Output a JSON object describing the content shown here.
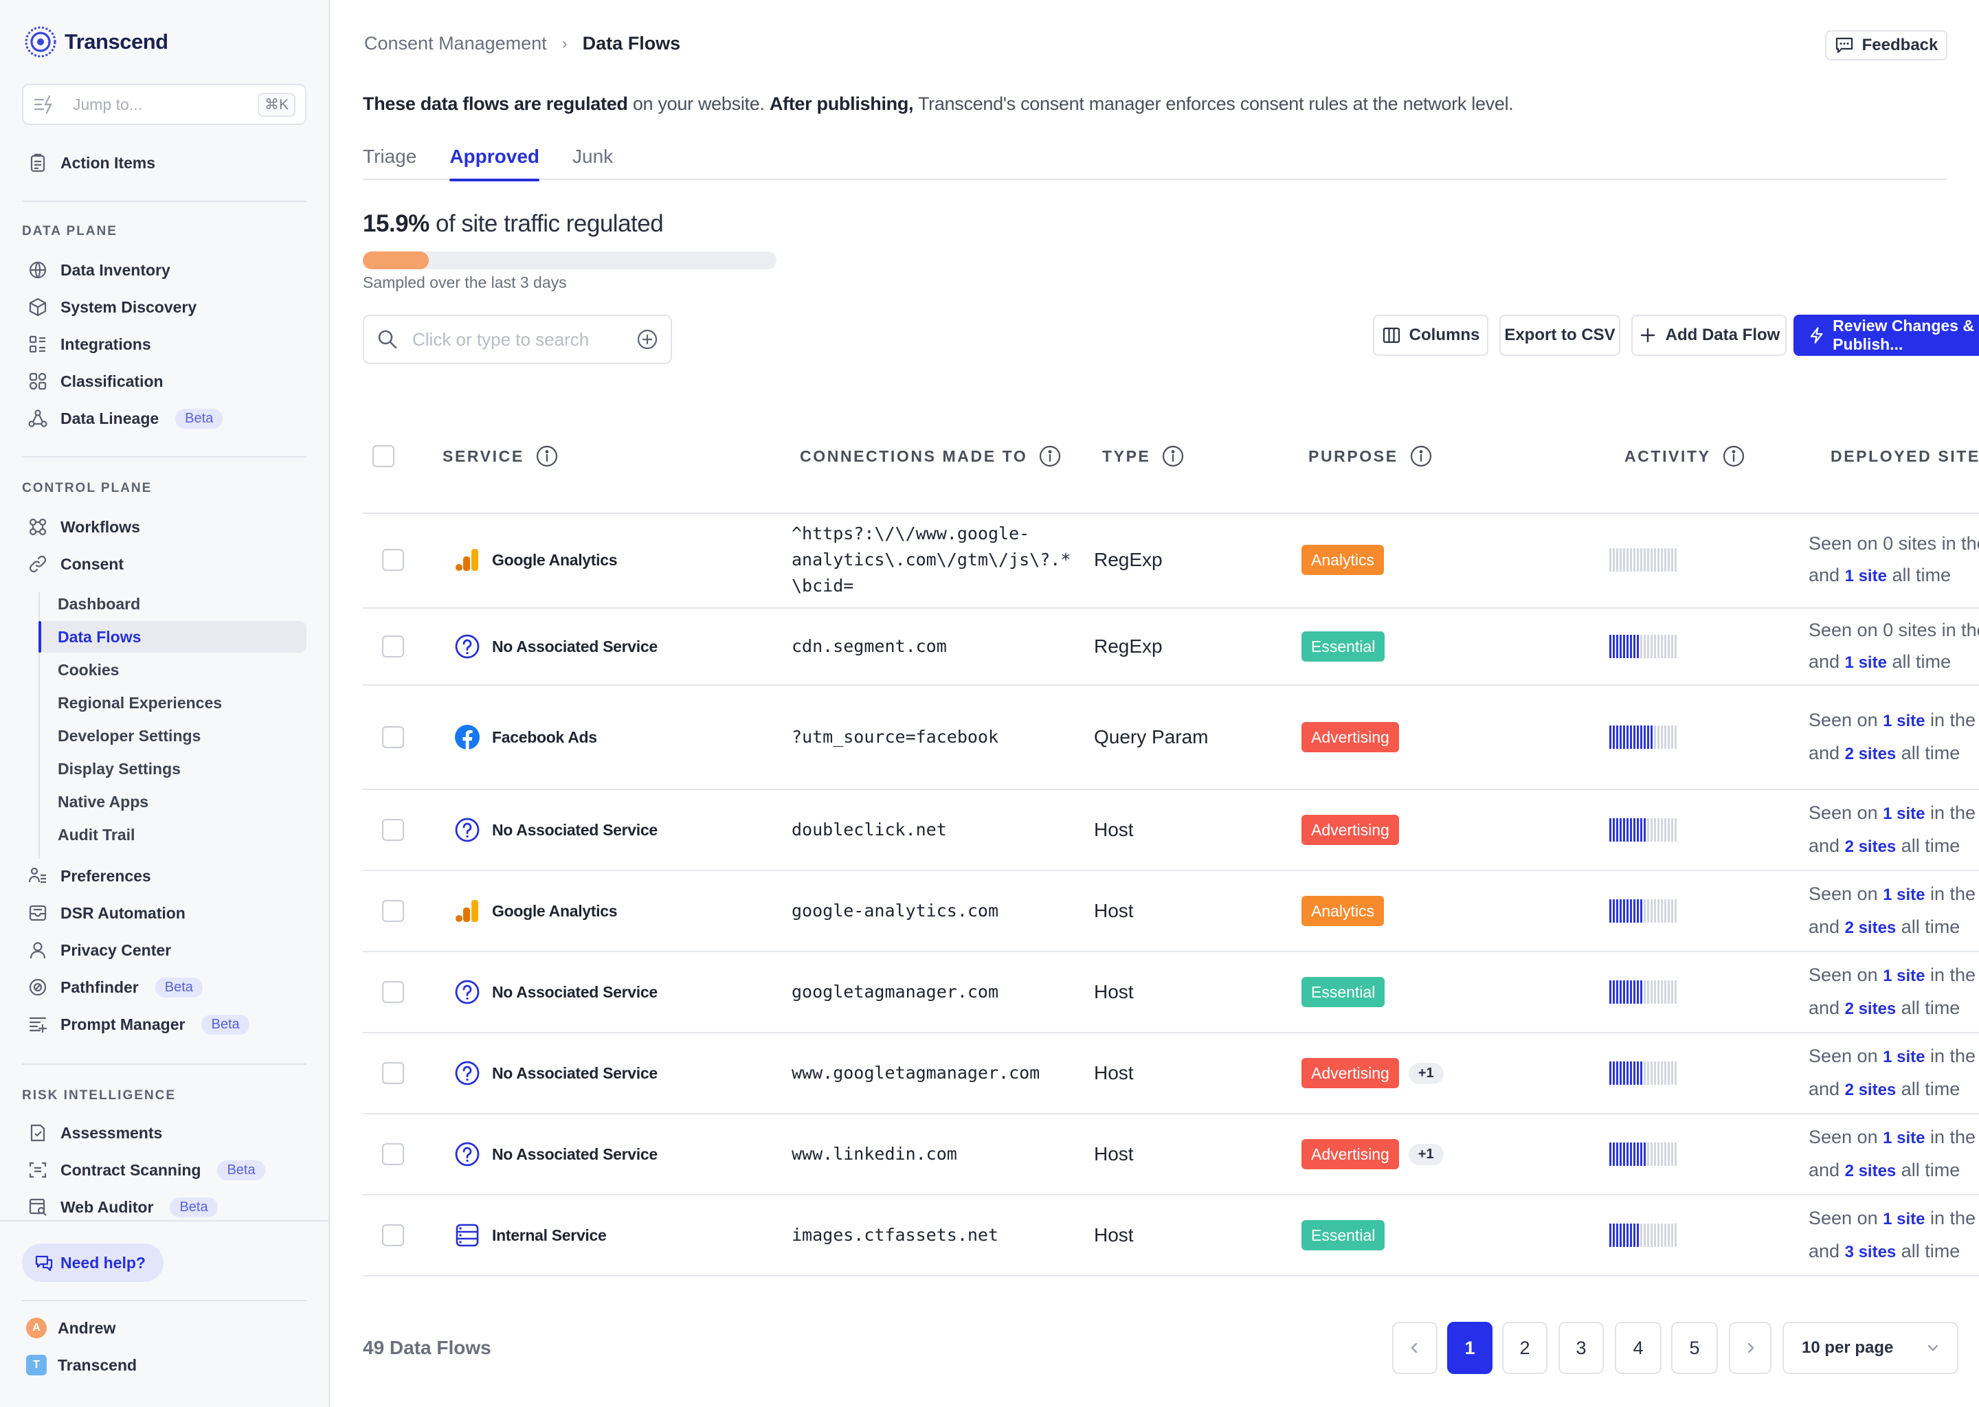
{
  "app": {
    "name": "Transcend"
  },
  "jump": {
    "placeholder": "Jump to...",
    "shortcut": "⌘K"
  },
  "nav": {
    "action_items": "Action Items",
    "data_plane_label": "DATA PLANE",
    "data_plane": [
      {
        "label": "Data Inventory",
        "icon": "globe-icon"
      },
      {
        "label": "System Discovery",
        "icon": "cube-icon"
      },
      {
        "label": "Integrations",
        "icon": "integrations-icon"
      },
      {
        "label": "Classification",
        "icon": "classification-icon"
      },
      {
        "label": "Data Lineage",
        "icon": "lineage-icon",
        "badge": "Beta"
      }
    ],
    "control_plane_label": "CONTROL PLANE",
    "control_plane": [
      {
        "label": "Workflows",
        "icon": "workflows-icon"
      },
      {
        "label": "Consent",
        "icon": "link-icon"
      }
    ],
    "consent_sub": [
      "Dashboard",
      "Data Flows",
      "Cookies",
      "Regional Experiences",
      "Developer Settings",
      "Display Settings",
      "Native Apps",
      "Audit Trail"
    ],
    "control_plane_2": [
      {
        "label": "Preferences",
        "icon": "preferences-icon"
      },
      {
        "label": "DSR Automation",
        "icon": "inbox-icon"
      },
      {
        "label": "Privacy Center",
        "icon": "person-icon"
      },
      {
        "label": "Pathfinder",
        "icon": "compass-icon",
        "badge": "Beta"
      },
      {
        "label": "Prompt Manager",
        "icon": "prompt-icon",
        "badge": "Beta"
      }
    ],
    "risk_label": "RISK INTELLIGENCE",
    "risk": [
      {
        "label": "Assessments",
        "icon": "assessment-icon"
      },
      {
        "label": "Contract Scanning",
        "icon": "contract-icon",
        "badge": "Beta"
      },
      {
        "label": "Web Auditor",
        "icon": "web-auditor-icon",
        "badge": "Beta"
      }
    ],
    "help": "Need help?",
    "user_name": "Andrew",
    "user_initial": "A",
    "org_name": "Transcend",
    "org_initial": "T"
  },
  "header": {
    "breadcrumb_parent": "Consent Management",
    "breadcrumb_current": "Data Flows",
    "feedback": "Feedback"
  },
  "intro": {
    "b1": "These data flows are regulated",
    "t1": " on your website. ",
    "b2": "After publishing,",
    "t2": " Transcend's consent manager enforces consent rules at the network level."
  },
  "tabs": [
    "Triage",
    "Approved",
    "Junk"
  ],
  "active_tab": "Approved",
  "traffic": {
    "percent": "15.9%",
    "label": " of site traffic regulated",
    "fraction": 0.159,
    "sampled": "Sampled over the last 3 days"
  },
  "search": {
    "placeholder": "Click or type to search"
  },
  "toolbar": {
    "columns": "Columns",
    "export": "Export to CSV",
    "add": "Add Data Flow",
    "publish": "Review Changes & Publish..."
  },
  "columns": [
    "SERVICE",
    "CONNECTIONS MADE TO",
    "TYPE",
    "PURPOSE",
    "ACTIVITY",
    "DEPLOYED SITES"
  ],
  "colors": {
    "Analytics": "#f78a2c",
    "Essential": "#3dc3a3",
    "Advertising": "#f5594c",
    "accent": "#2530e8"
  },
  "rows": [
    {
      "service": "Google Analytics",
      "icon": "google-analytics-icon",
      "connection": "^https?:\\/\\/www.google-\nanalytics\\.com\\/gtm\\/js\\?.*\n\\bcid=",
      "type": "RegExp",
      "purpose": "Analytics",
      "more": "",
      "activity": 0,
      "seen_a": "Seen on 0 sites in the",
      "seen_b_pre": "and ",
      "seen_b_link": "1 site",
      "seen_b_post": " all time"
    },
    {
      "service": "No Associated Service",
      "icon": "question-icon",
      "connection": "cdn.segment.com",
      "type": "RegExp",
      "purpose": "Essential",
      "more": "",
      "activity": 9,
      "seen_a": "Seen on 0 sites in the",
      "seen_b_pre": "and ",
      "seen_b_link": "1 site",
      "seen_b_post": " all time"
    },
    {
      "service": "Facebook Ads",
      "icon": "facebook-icon",
      "connection": "?utm_source=facebook",
      "type": "Query Param",
      "purpose": "Advertising",
      "more": "",
      "activity": 13,
      "seen_a_pre": "Seen on ",
      "seen_a_link": "1 site",
      "seen_a_post": " in the la",
      "seen_b_pre": "and ",
      "seen_b_link": "2 sites",
      "seen_b_post": " all time"
    },
    {
      "service": "No Associated Service",
      "icon": "question-icon",
      "connection": "doubleclick.net",
      "type": "Host",
      "purpose": "Advertising",
      "more": "",
      "activity": 11,
      "seen_a_pre": "Seen on ",
      "seen_a_link": "1 site",
      "seen_a_post": " in the la",
      "seen_b_pre": "and ",
      "seen_b_link": "2 sites",
      "seen_b_post": " all time"
    },
    {
      "service": "Google Analytics",
      "icon": "google-analytics-icon",
      "connection": "google-analytics.com",
      "type": "Host",
      "purpose": "Analytics",
      "more": "",
      "activity": 10,
      "seen_a_pre": "Seen on ",
      "seen_a_link": "1 site",
      "seen_a_post": " in the la",
      "seen_b_pre": "and ",
      "seen_b_link": "2 sites",
      "seen_b_post": " all time"
    },
    {
      "service": "No Associated Service",
      "icon": "question-icon",
      "connection": "googletagmanager.com",
      "type": "Host",
      "purpose": "Essential",
      "more": "",
      "activity": 10,
      "seen_a_pre": "Seen on ",
      "seen_a_link": "1 site",
      "seen_a_post": " in the la",
      "seen_b_pre": "and ",
      "seen_b_link": "2 sites",
      "seen_b_post": " all time"
    },
    {
      "service": "No Associated Service",
      "icon": "question-icon",
      "connection": "www.googletagmanager.com",
      "type": "Host",
      "purpose": "Advertising",
      "more": "+1",
      "activity": 10,
      "seen_a_pre": "Seen on ",
      "seen_a_link": "1 site",
      "seen_a_post": " in the la",
      "seen_b_pre": "and ",
      "seen_b_link": "2 sites",
      "seen_b_post": " all time"
    },
    {
      "service": "No Associated Service",
      "icon": "question-icon",
      "connection": "www.linkedin.com",
      "type": "Host",
      "purpose": "Advertising",
      "more": "+1",
      "activity": 11,
      "seen_a_pre": "Seen on ",
      "seen_a_link": "1 site",
      "seen_a_post": " in the la",
      "seen_b_pre": "and ",
      "seen_b_link": "2 sites",
      "seen_b_post": " all time"
    },
    {
      "service": "Internal Service",
      "icon": "internal-service-icon",
      "connection": "images.ctfassets.net",
      "type": "Host",
      "purpose": "Essential",
      "more": "",
      "activity": 9,
      "seen_a_pre": "Seen on ",
      "seen_a_link": "1 site",
      "seen_a_post": " in the la",
      "seen_b_pre": "and ",
      "seen_b_link": "3 sites",
      "seen_b_post": " all time"
    }
  ],
  "footer": {
    "count": "49 Data Flows",
    "pages": [
      "1",
      "2",
      "3",
      "4",
      "5"
    ],
    "current_page": "1",
    "per_page": "10 per page"
  }
}
